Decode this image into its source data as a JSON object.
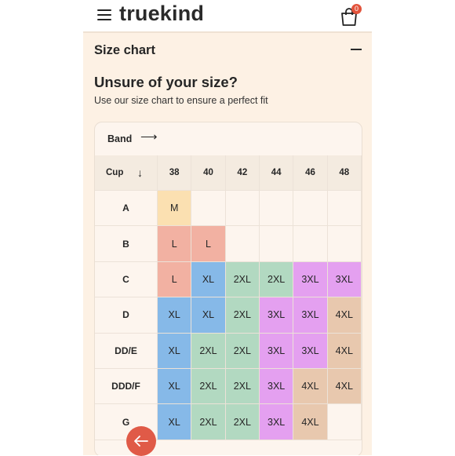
{
  "header": {
    "logo": "truekind",
    "cart_count": "0",
    "menu_icon": "hamburger-icon",
    "cart_icon": "shopping-bag-icon"
  },
  "accordion": {
    "title": "Size chart",
    "toggle_icon": "minus-icon"
  },
  "intro": {
    "heading": "Unsure of your size?",
    "description": "Use our size chart to ensure a perfect fit"
  },
  "table": {
    "band_label": "Band",
    "band_icon": "arrow-right-icon",
    "cup_label": "Cup",
    "cup_icon": "arrow-down-icon",
    "band_sizes": [
      "38",
      "40",
      "42",
      "44",
      "46",
      "48"
    ],
    "rows": [
      {
        "cup": "A",
        "sizes": [
          "M",
          "",
          "",
          "",
          "",
          ""
        ]
      },
      {
        "cup": "B",
        "sizes": [
          "L",
          "L",
          "",
          "",
          "",
          ""
        ]
      },
      {
        "cup": "C",
        "sizes": [
          "L",
          "XL",
          "2XL",
          "2XL",
          "3XL",
          "3XL"
        ]
      },
      {
        "cup": "D",
        "sizes": [
          "XL",
          "XL",
          "2XL",
          "3XL",
          "3XL",
          "4XL"
        ]
      },
      {
        "cup": "DD/E",
        "sizes": [
          "XL",
          "2XL",
          "2XL",
          "3XL",
          "3XL",
          "4XL"
        ]
      },
      {
        "cup": "DDD/F",
        "sizes": [
          "XL",
          "2XL",
          "2XL",
          "3XL",
          "4XL",
          "4XL"
        ]
      },
      {
        "cup": "G",
        "sizes": [
          "XL",
          "2XL",
          "2XL",
          "3XL",
          "4XL",
          ""
        ]
      }
    ],
    "size_colors": {
      "M": "#fbe0b1",
      "L": "#f2b1a2",
      "XL": "#86b9e8",
      "2XL": "#b2d9c1",
      "3XL": "#e4a0f0",
      "4XL": "#e8c8ae"
    }
  },
  "back_button": {
    "icon": "arrow-left-icon",
    "color": "#e05a47"
  }
}
